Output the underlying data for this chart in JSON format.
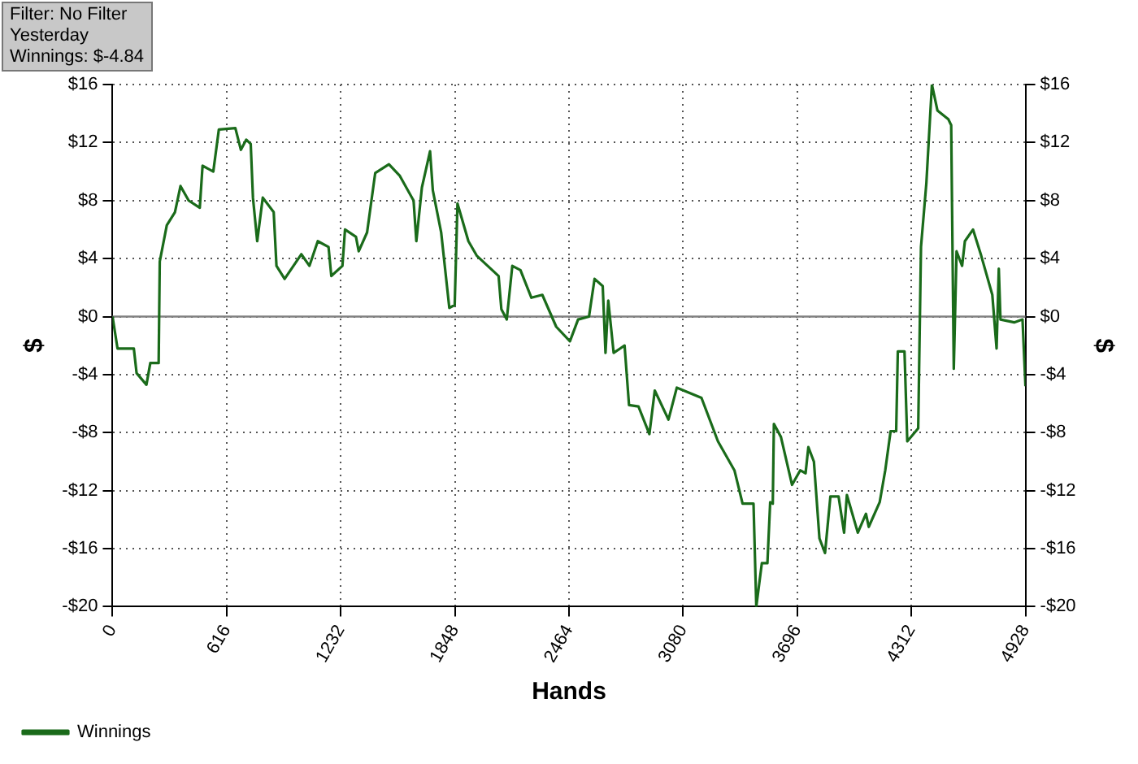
{
  "chart_data": {
    "type": "line",
    "xlabel": "Hands",
    "ylabel": "$",
    "y2label": "$",
    "annotations": [
      "Filter: No Filter",
      "Yesterday",
      "Winnings: $-4.84"
    ],
    "x": [
      0,
      27,
      115,
      130,
      183,
      204,
      249,
      255,
      293,
      337,
      367,
      411,
      471,
      486,
      544,
      574,
      663,
      693,
      722,
      746,
      758,
      781,
      811,
      870,
      885,
      929,
      1019,
      1063,
      1108,
      1166,
      1181,
      1241,
      1255,
      1314,
      1329,
      1374,
      1418,
      1492,
      1551,
      1625,
      1640,
      1670,
      1714,
      1729,
      1774,
      1818,
      1847,
      1862,
      1921,
      1966,
      2084,
      2099,
      2128,
      2158,
      2202,
      2261,
      2320,
      2395,
      2469,
      2513,
      2572,
      2602,
      2646,
      2661,
      2676,
      2705,
      2764,
      2788,
      2839,
      2898,
      2927,
      3001,
      3046,
      3179,
      3268,
      3357,
      3401,
      3460,
      3475,
      3505,
      3535,
      3550,
      3564,
      3570,
      3608,
      3668,
      3712,
      3741,
      3756,
      3786,
      3816,
      3846,
      3875,
      3919,
      3949,
      3964,
      4023,
      4067,
      4082,
      4141,
      4171,
      4200,
      4230,
      4239,
      4275,
      4290,
      4349,
      4364,
      4393,
      4423,
      4453,
      4512,
      4527,
      4541,
      4556,
      4586,
      4601,
      4645,
      4689,
      4749,
      4772,
      4784,
      4793,
      4867,
      4912,
      4928
    ],
    "series": [
      {
        "name": "Winnings",
        "color": "#1a6b1a",
        "values": [
          0,
          -2.2,
          -2.2,
          -3.9,
          -4.7,
          -3.2,
          -3.2,
          3.8,
          6.3,
          7.2,
          9.0,
          8.0,
          7.5,
          10.4,
          10.0,
          12.9,
          13.0,
          11.5,
          12.2,
          11.9,
          8.2,
          5.2,
          8.2,
          7.2,
          3.5,
          2.6,
          4.3,
          3.5,
          5.2,
          4.8,
          2.8,
          3.5,
          6.0,
          5.5,
          4.5,
          5.8,
          9.9,
          10.5,
          9.7,
          8.0,
          5.2,
          8.9,
          11.4,
          8.7,
          5.8,
          0.6,
          0.8,
          7.8,
          5.2,
          4.2,
          2.8,
          0.5,
          -0.2,
          3.5,
          3.2,
          1.3,
          1.5,
          -0.7,
          -1.7,
          -0.2,
          0,
          2.6,
          2.1,
          -2.5,
          1.1,
          -2.5,
          -2.0,
          -6.1,
          -6.2,
          -8.1,
          -5.1,
          -7.1,
          -4.9,
          -5.6,
          -8.6,
          -10.6,
          -12.9,
          -12.9,
          -20,
          -17.0,
          -17.0,
          -12.8,
          -12.9,
          -7.4,
          -8.3,
          -11.6,
          -10.6,
          -10.8,
          -9.0,
          -10.0,
          -15.3,
          -16.3,
          -12.4,
          -12.4,
          -14.9,
          -12.3,
          -14.9,
          -13.6,
          -14.5,
          -12.8,
          -10.6,
          -7.9,
          -7.9,
          -2.4,
          -2.4,
          -8.6,
          -7.7,
          4.8,
          9.2,
          16,
          14.2,
          13.6,
          13.2,
          -3.6,
          4.5,
          3.5,
          5.2,
          6.0,
          4.2,
          1.5,
          -2.2,
          3.3,
          -0.2,
          -0.4,
          -0.2,
          -4.8
        ]
      }
    ],
    "xlim": [
      0,
      4928
    ],
    "xticks": [
      0,
      616,
      1232,
      1848,
      2464,
      3080,
      3696,
      4312,
      4928
    ],
    "ylim": [
      -20,
      16
    ],
    "yticks": [
      {
        "value": -20,
        "label": "-$20"
      },
      {
        "value": -16,
        "label": "-$16"
      },
      {
        "value": -12,
        "label": "-$12"
      },
      {
        "value": -8,
        "label": "-$8"
      },
      {
        "value": -4,
        "label": "-$4"
      },
      {
        "value": 0,
        "label": "$0"
      },
      {
        "value": 4,
        "label": "$4"
      },
      {
        "value": 8,
        "label": "$8"
      },
      {
        "value": 12,
        "label": "$12"
      },
      {
        "value": 16,
        "label": "$16"
      }
    ],
    "y2lim": [
      -20,
      16
    ],
    "y2ticks": [
      {
        "value": -20,
        "label": "-$20"
      },
      {
        "value": -16,
        "label": "-$16"
      },
      {
        "value": -12,
        "label": "-$12"
      },
      {
        "value": -8,
        "label": "-$8"
      },
      {
        "value": -4,
        "label": "-$4"
      },
      {
        "value": 0,
        "label": "$0"
      },
      {
        "value": 4,
        "label": "$4"
      },
      {
        "value": 8,
        "label": "$8"
      },
      {
        "value": 12,
        "label": "$12"
      },
      {
        "value": 16,
        "label": "$16"
      }
    ],
    "ref_lines": [
      {
        "axis": "y",
        "value": 0,
        "color": "#808080"
      }
    ],
    "grid": true,
    "legend": "bottom left",
    "marker": "none",
    "line_style": "solid"
  }
}
